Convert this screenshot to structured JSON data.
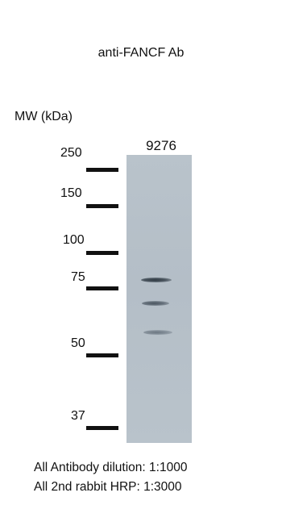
{
  "title": "anti-FANCF Ab",
  "mw_header": "MW  (kDa)",
  "lane_label": "9276",
  "markers": [
    "250",
    "150",
    "100",
    "75",
    "50",
    "37"
  ],
  "footnotes": [
    "All Antibody dilution: 1:1000",
    "All 2nd rabbit HRP: 1:3000"
  ],
  "colors": {
    "membrane": "#b6c0c9",
    "band": "#3f4a55",
    "ink": "#111111"
  }
}
